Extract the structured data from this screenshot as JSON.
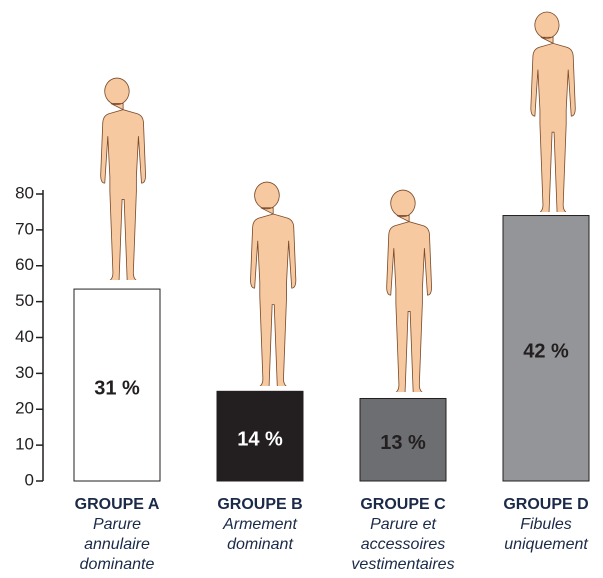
{
  "chart_data": {
    "type": "bar",
    "categories": [
      "GROUPE A",
      "GROUPE B",
      "GROUPE C",
      "GROUPE D"
    ],
    "descriptions": [
      [
        "Parure",
        "annulaire",
        "dominante"
      ],
      [
        "Armement",
        "dominant"
      ],
      [
        "Parure et",
        "accessoires",
        "vestimentaires"
      ],
      [
        "Fibules",
        "uniquement"
      ]
    ],
    "values": [
      53.5,
      25,
      23,
      74
    ],
    "annotations": [
      "31 %",
      "14 %",
      "13 %",
      "42 %"
    ],
    "colors": [
      "#ffffff",
      "#231f20",
      "#6d6e71",
      "#939598"
    ],
    "annotation_colors": [
      "#231f20",
      "#ffffff",
      "#231f20",
      "#231f20"
    ],
    "ylim": [
      0,
      80
    ],
    "yticks": [
      0,
      10,
      20,
      30,
      40,
      50,
      60,
      70,
      80
    ]
  }
}
